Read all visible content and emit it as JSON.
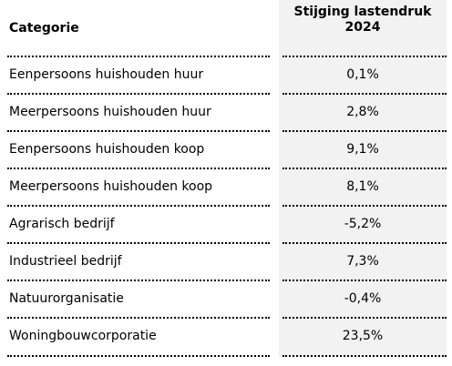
{
  "table": {
    "header": {
      "category": "Categorie",
      "value_line1": "Stijging lastendruk",
      "value_line2": "2024"
    },
    "rows": [
      {
        "category": "Eenpersoons huishouden huur",
        "value": "0,1%"
      },
      {
        "category": "Meerpersoons huishouden huur",
        "value": "2,8%"
      },
      {
        "category": "Eenpersoons huishouden koop",
        "value": "9,1%"
      },
      {
        "category": "Meerpersoons huishouden koop",
        "value": "8,1%"
      },
      {
        "category": "Agrarisch bedrijf",
        "value": "-5,2%"
      },
      {
        "category": "Industrieel bedrijf",
        "value": "7,3%"
      },
      {
        "category": "Natuurorganisatie",
        "value": "-0,4%"
      },
      {
        "category": "Woningbouwcorporatie",
        "value": "23,5%"
      }
    ]
  },
  "colors": {
    "value_column_background": "#f2f2f2",
    "text": "#000000",
    "separator": "#000000"
  }
}
